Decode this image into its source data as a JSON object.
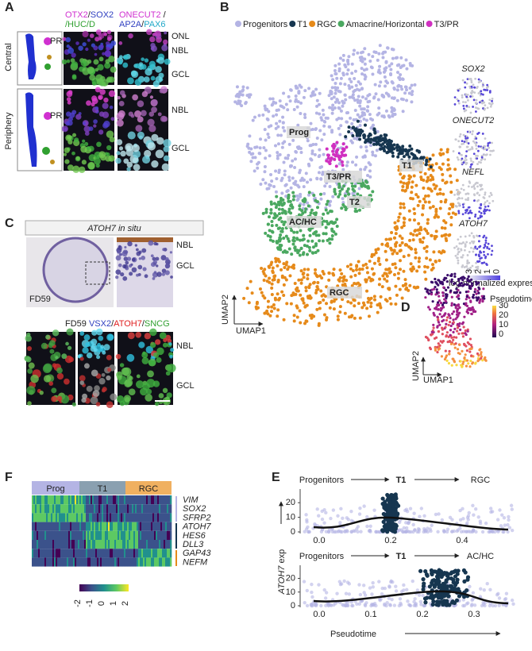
{
  "A": {
    "label": "A",
    "row_labels": [
      "Central",
      "Periphery"
    ],
    "stain_headers": [
      [
        [
          {
            "text": "OTX2",
            "color": "#d030d0"
          },
          {
            "text": "/",
            "color": "#222222"
          },
          {
            "text": "SOX2",
            "color": "#3040c0"
          }
        ],
        [
          {
            "text": "/HUC/D",
            "color": "#30a030"
          }
        ]
      ],
      [
        [
          {
            "text": "ONECUT2",
            "color": "#d030d0"
          },
          {
            "text": " /",
            "color": "#222222"
          }
        ],
        [
          {
            "text": "AP2A",
            "color": "#3040c0"
          },
          {
            "text": "/",
            "color": "#222222"
          },
          {
            "text": "PAX6",
            "color": "#20a8c8"
          }
        ]
      ]
    ],
    "layers_central": [
      "ONL",
      "NBL",
      "GCL"
    ],
    "layers_periphery": [
      "NBL",
      "GCL"
    ],
    "cell_labels": [
      "PR",
      "PR"
    ]
  },
  "B": {
    "label": "B",
    "legend": [
      {
        "name": "Progenitors",
        "color": "#b4b4e4"
      },
      {
        "name": "T1",
        "color": "#163650"
      },
      {
        "name": "RGC",
        "color": "#e68a1a"
      },
      {
        "name": "Amacrine/Horizontal",
        "color": "#4aa860"
      },
      {
        "name": "T3/PR",
        "color": "#d030c0"
      }
    ],
    "cluster_labels": [
      "Prog",
      "T1",
      "T3/PR",
      "T2",
      "AC/HC",
      "RGC"
    ],
    "axes": [
      "UMAP2",
      "UMAP1"
    ],
    "feature_plots": [
      "SOX2",
      "ONECUT2",
      "NEFL",
      "ATOH7"
    ],
    "colorbar_title": "log normalized expression",
    "colorbar_ticks": [
      3,
      2,
      1,
      0
    ]
  },
  "C": {
    "label": "C",
    "insitu_title": "ATOH7 in situ",
    "sample": "FD59",
    "layers_top": [
      "NBL",
      "GCL"
    ],
    "stain_header": [
      {
        "text": "FD59 ",
        "color": "#222222"
      },
      {
        "text": "VSX2",
        "color": "#3040c0"
      },
      {
        "text": "/",
        "color": "#222222"
      },
      {
        "text": "ATOH7",
        "color": "#e02020"
      },
      {
        "text": "/",
        "color": "#222222"
      },
      {
        "text": "SNCG",
        "color": "#30a030"
      }
    ],
    "layers_bottom": [
      "NBL",
      "GCL"
    ]
  },
  "D": {
    "label": "D",
    "colorbar_title": "Pseudotime",
    "colorbar_ticks": [
      30,
      20,
      10,
      0
    ],
    "axes": [
      "UMAP2",
      "UMAP1"
    ]
  },
  "F": {
    "label": "F",
    "groups": [
      {
        "name": "Prog",
        "color": "#b4b4e4"
      },
      {
        "name": "T1",
        "color": "#8aa0b0"
      },
      {
        "name": "RGC",
        "color": "#f0b060"
      }
    ],
    "genes": [
      "VIM",
      "SOX2",
      "SFRP2",
      "ATOH7",
      "HES6",
      "DLL3",
      "GAP43",
      "NEFM"
    ],
    "colorbar_ticks": [
      -2,
      -1,
      0,
      1,
      2
    ]
  },
  "E": {
    "label": "E",
    "y_label_gene": "ATOH7",
    "y_label_rest": " exp",
    "x_label": "Pseudotime",
    "plots": [
      {
        "path": [
          "Progenitors",
          "T1",
          "RGC"
        ],
        "yticks": [
          0,
          10,
          20
        ],
        "xticks": [
          "0.0",
          "0.2",
          "0.4"
        ]
      },
      {
        "path": [
          "Progenitors",
          "T1",
          "AC/HC"
        ],
        "yticks": [
          0,
          10,
          20
        ],
        "xticks": [
          "0.0",
          "0.1",
          "0.2",
          "0.3"
        ]
      }
    ]
  }
}
